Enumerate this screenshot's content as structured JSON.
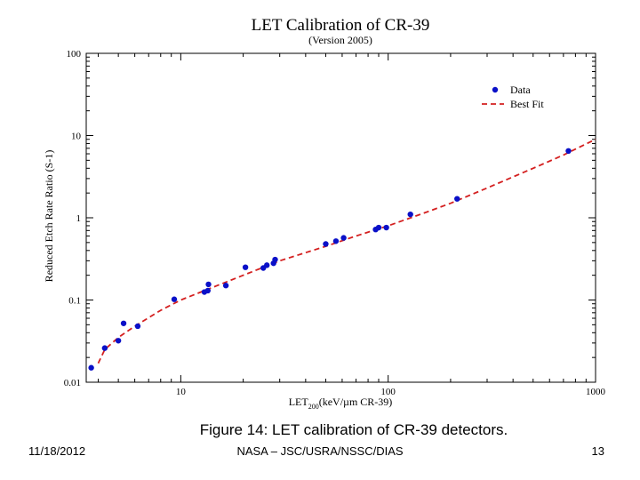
{
  "chart_data": {
    "type": "scatter",
    "title": "LET Calibration of CR-39",
    "subtitle": "(Version 2005)",
    "xlabel_main": "LET",
    "xlabel_sub": "200",
    "xlabel_rest": "(keV/µm CR-39)",
    "ylabel": "Reduced Etch Rate Ratio (S-1)",
    "xscale": "log",
    "yscale": "log",
    "xlim": [
      3.5,
      1000
    ],
    "ylim": [
      0.01,
      100
    ],
    "xticks": [
      {
        "value": 10,
        "label": "10"
      },
      {
        "value": 100,
        "label": "100"
      },
      {
        "value": 1000,
        "label": "1000"
      }
    ],
    "yticks": [
      {
        "value": 0.01,
        "label": "0.01"
      },
      {
        "value": 0.1,
        "label": "0.1"
      },
      {
        "value": 1,
        "label": "1"
      },
      {
        "value": 10,
        "label": "10"
      },
      {
        "value": 100,
        "label": "100"
      }
    ],
    "grid": false,
    "legend_position": "top-right",
    "series": [
      {
        "name": "Data",
        "style": "points",
        "color": "#0a10c8",
        "x": [
          3.7,
          4.3,
          5.0,
          5.3,
          6.2,
          9.3,
          13.0,
          13.5,
          13.6,
          16.5,
          20.5,
          25.0,
          26.0,
          28.0,
          28.5,
          50.0,
          56.0,
          61.0,
          87.0,
          90.0,
          98.0,
          128.0,
          215.0,
          740.0
        ],
        "y": [
          0.015,
          0.026,
          0.032,
          0.052,
          0.048,
          0.102,
          0.125,
          0.13,
          0.155,
          0.15,
          0.25,
          0.245,
          0.265,
          0.28,
          0.31,
          0.48,
          0.52,
          0.57,
          0.72,
          0.76,
          0.76,
          1.1,
          1.7,
          6.5
        ]
      },
      {
        "name": "Best Fit",
        "style": "dashed-line",
        "color": "#d42020",
        "x": [
          4.0,
          4.3,
          5.0,
          6.0,
          8.0,
          10.0,
          15.0,
          20.0,
          30.0,
          50.0,
          70.0,
          100.0,
          150.0,
          200.0,
          300.0,
          500.0,
          700.0,
          1000.0
        ],
        "y": [
          0.017,
          0.025,
          0.035,
          0.048,
          0.075,
          0.1,
          0.15,
          0.2,
          0.3,
          0.45,
          0.6,
          0.8,
          1.15,
          1.5,
          2.3,
          4.0,
          5.8,
          9.0
        ]
      }
    ]
  },
  "caption": "Figure 14: LET calibration of CR-39 detectors.",
  "footer": {
    "date": "11/18/2012",
    "organization": "NASA – JSC/USRA/NSSC/DIAS",
    "page_number": "13"
  }
}
